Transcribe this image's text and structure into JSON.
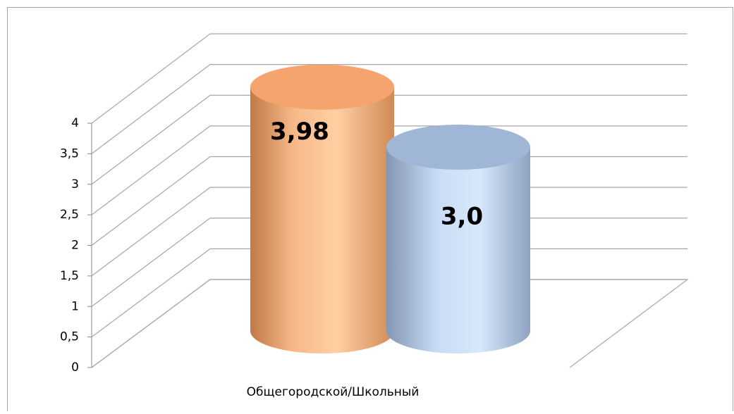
{
  "chart_data": {
    "type": "bar3d",
    "categories": [
      "Общегородской/Школьный"
    ],
    "series": [
      {
        "color": "#f4a46c",
        "values": [
          3.98
        ],
        "value_labels": [
          "3,98"
        ]
      },
      {
        "color": "#9fb6d6",
        "values": [
          3.0
        ],
        "value_labels": [
          "3,0"
        ]
      }
    ],
    "ylim": [
      0,
      4
    ],
    "yticks": [
      0,
      {
        "value": 0.5,
        "label": "0,5"
      },
      1,
      {
        "value": 1.5,
        "label": "1,5"
      },
      2,
      {
        "value": 2.5,
        "label": "2,5"
      },
      3,
      {
        "value": 3.5,
        "label": "3,5"
      },
      4
    ],
    "grid": true
  }
}
